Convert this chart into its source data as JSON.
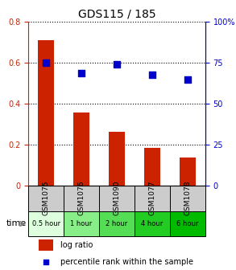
{
  "title": "GDS115 / 185",
  "samples": [
    "GSM1075",
    "GSM1076",
    "GSM1090",
    "GSM1077",
    "GSM1078"
  ],
  "time_labels": [
    "0.5 hour",
    "1 hour",
    "2 hour",
    "4 hour",
    "6 hour"
  ],
  "log_ratio": [
    0.71,
    0.355,
    0.26,
    0.185,
    0.135
  ],
  "percentile_rank": [
    0.75,
    0.685,
    0.74,
    0.675,
    0.645
  ],
  "bar_color": "#cc2200",
  "dot_color": "#0000cc",
  "ylim_left": [
    0,
    0.8
  ],
  "ylim_right": [
    0,
    1.0
  ],
  "yticks_left": [
    0,
    0.2,
    0.4,
    0.6,
    0.8
  ],
  "ytick_labels_left": [
    "0",
    "0.2",
    "0.4",
    "0.6",
    "0.8"
  ],
  "yticks_right": [
    0,
    0.25,
    0.5,
    0.75,
    1.0
  ],
  "ytick_labels_right": [
    "0",
    "25",
    "50",
    "75",
    "100%"
  ],
  "time_colors": [
    "#ddffdd",
    "#88ee88",
    "#55dd55",
    "#22cc22",
    "#00bb00"
  ],
  "sample_bg": "#cccccc",
  "legend_log_ratio": "log ratio",
  "legend_percentile": "percentile rank within the sample"
}
